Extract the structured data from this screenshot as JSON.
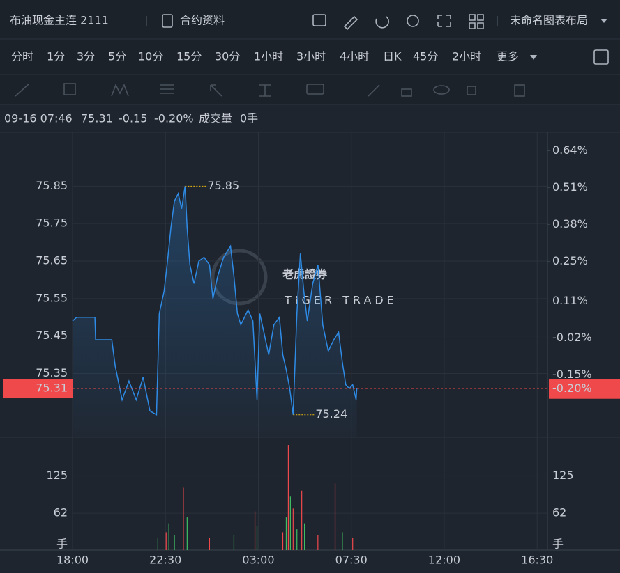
{
  "header": {
    "title": "布油现金主连 2111",
    "info": "合约资料",
    "layout": "未命名图表布局"
  },
  "timeframes": [
    "分时",
    "1分",
    "3分",
    "5分",
    "10分",
    "15分",
    "30分",
    "1小时",
    "3小时",
    "4小时",
    "日K",
    "45分",
    "2小时",
    "更多"
  ],
  "quote": {
    "time": "09-16 07:46",
    "price": "75.31",
    "change": "-0.15",
    "change_pct": "-0.20%",
    "volume_label": "成交量",
    "volume": "0手"
  },
  "watermark": {
    "cn": "老虎證券",
    "en": "TIGER TRADE"
  },
  "chart_data": {
    "type": "line",
    "color": "#2e8be6",
    "up_color": "#3fbf63",
    "down_color": "#f0494c",
    "x": [
      "18:00",
      "18:12",
      "18:22",
      "19:05",
      "19:07",
      "19:54",
      "20:04",
      "20:24",
      "20:44",
      "21:05",
      "21:25",
      "21:45",
      "22:04",
      "22:12",
      "22:26",
      "22:36",
      "22:46",
      "22:56",
      "23:07",
      "23:17",
      "23:27",
      "23:33",
      "23:41",
      "23:53",
      "00:07",
      "00:22",
      "00:38",
      "00:48",
      "01:02",
      "01:19",
      "01:39",
      "01:49",
      "01:59",
      "02:09",
      "02:30",
      "02:44",
      "02:56",
      "03:04",
      "03:16",
      "03:30",
      "03:45",
      "04:01",
      "04:11",
      "04:21",
      "04:31",
      "04:41",
      "04:52",
      "05:02",
      "05:12",
      "05:22",
      "05:38",
      "05:53",
      "06:07",
      "06:23",
      "06:39",
      "06:53",
      "07:04",
      "07:14",
      "07:24",
      "07:34",
      "07:44",
      "07:46"
    ],
    "values": [
      75.49,
      75.5,
      75.5,
      75.5,
      75.44,
      75.44,
      75.37,
      75.28,
      75.33,
      75.28,
      75.34,
      75.25,
      75.24,
      75.51,
      75.57,
      75.65,
      75.74,
      75.81,
      75.83,
      75.79,
      75.85,
      75.74,
      75.64,
      75.59,
      75.65,
      75.66,
      75.64,
      75.55,
      75.61,
      75.66,
      75.69,
      75.61,
      75.51,
      75.48,
      75.52,
      75.49,
      75.28,
      75.51,
      75.46,
      75.4,
      75.48,
      75.5,
      75.4,
      75.36,
      75.31,
      75.24,
      75.51,
      75.67,
      75.57,
      75.49,
      75.59,
      75.64,
      75.48,
      75.41,
      75.44,
      75.46,
      75.38,
      75.32,
      75.31,
      75.32,
      75.28,
      75.31
    ],
    "xlim": [
      "18:00",
      "17:00"
    ],
    "xticks": [
      "18:00",
      "22:30",
      "03:00",
      "07:30",
      "12:00",
      "16:30"
    ],
    "ylim": [
      75.18,
      75.99
    ],
    "yticks": [
      75.85,
      75.75,
      75.65,
      75.55,
      75.45,
      75.35
    ],
    "y2lim": [
      -0.37,
      0.7
    ],
    "y2ticks": [
      {
        "value": 0.64,
        "label": "0.64%"
      },
      {
        "value": 0.51,
        "label": "0.51%"
      },
      {
        "value": 0.38,
        "label": "0.38%"
      },
      {
        "value": 0.25,
        "label": "0.25%"
      },
      {
        "value": 0.11,
        "label": "0.11%"
      },
      {
        "value": -0.02,
        "label": "-0.02%"
      },
      {
        "value": -0.15,
        "label": "-0.15%"
      }
    ],
    "high": {
      "time": "23:27",
      "value": 75.85
    },
    "low": {
      "time": "04:41",
      "value": 75.24
    },
    "last": {
      "value": 75.31,
      "pct": {
        "value": -0.2,
        "label": "-0.20%"
      }
    },
    "grid": true,
    "volume": {
      "x": [
        "22:08",
        "22:32",
        "22:40",
        "22:56",
        "23:22",
        "23:33",
        "00:38",
        "01:49",
        "02:50",
        "02:56",
        "04:11",
        "04:21",
        "04:27",
        "04:33",
        "04:41",
        "04:52",
        "05:06",
        "05:14",
        "05:53",
        "06:43",
        "07:04",
        "07:34"
      ],
      "values": [
        20,
        30,
        45,
        25,
        105,
        55,
        20,
        25,
        65,
        40,
        30,
        55,
        177,
        90,
        70,
        35,
        100,
        45,
        25,
        112,
        30,
        20
      ],
      "colors": [
        "#3fbf63",
        "#f0494c",
        "#3fbf63",
        "#3fbf63",
        "#f0494c",
        "#3fbf63",
        "#f0494c",
        "#3fbf63",
        "#f0494c",
        "#3fbf63",
        "#f0494c",
        "#3fbf63",
        "#f0494c",
        "#3fbf63",
        "#f0494c",
        "#3fbf63",
        "#f0494c",
        "#3fbf63",
        "#f0494c",
        "#f0494c",
        "#3fbf63",
        "#f0494c"
      ],
      "ylim": [
        0,
        190
      ],
      "yticks": [
        {
          "value": 0,
          "label": "手"
        },
        62,
        125
      ]
    }
  }
}
